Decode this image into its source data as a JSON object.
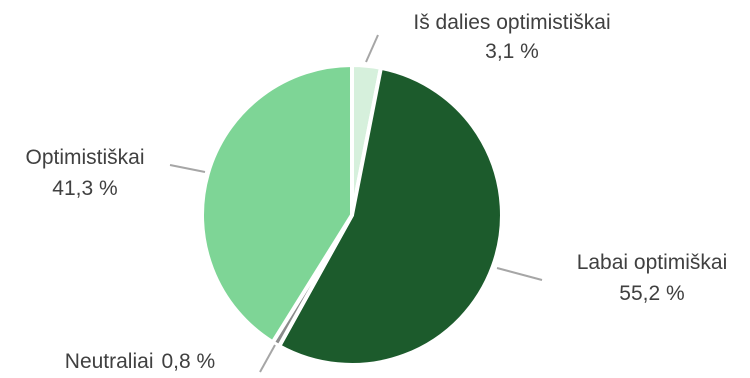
{
  "chart_data": {
    "type": "pie",
    "title": "",
    "slices": [
      {
        "name": "Iš dalies optimistiškai",
        "value": 3.1,
        "display": "3,1 %",
        "color": "#d6f0dc"
      },
      {
        "name": "Labai optimiškai",
        "value": 55.2,
        "display": "55,2 %",
        "color": "#1c5b2c"
      },
      {
        "name": "Neutraliai",
        "value": 0.8,
        "display": "0,8 %",
        "color": "#8c8c8c"
      },
      {
        "name": "Optimistiškai",
        "value": 41.3,
        "display": "41,3 %",
        "color": "#7ed596"
      }
    ],
    "start_angle_deg": 0,
    "direction": "clockwise",
    "legend": "none",
    "labels": "outside-with-leader-lines"
  }
}
